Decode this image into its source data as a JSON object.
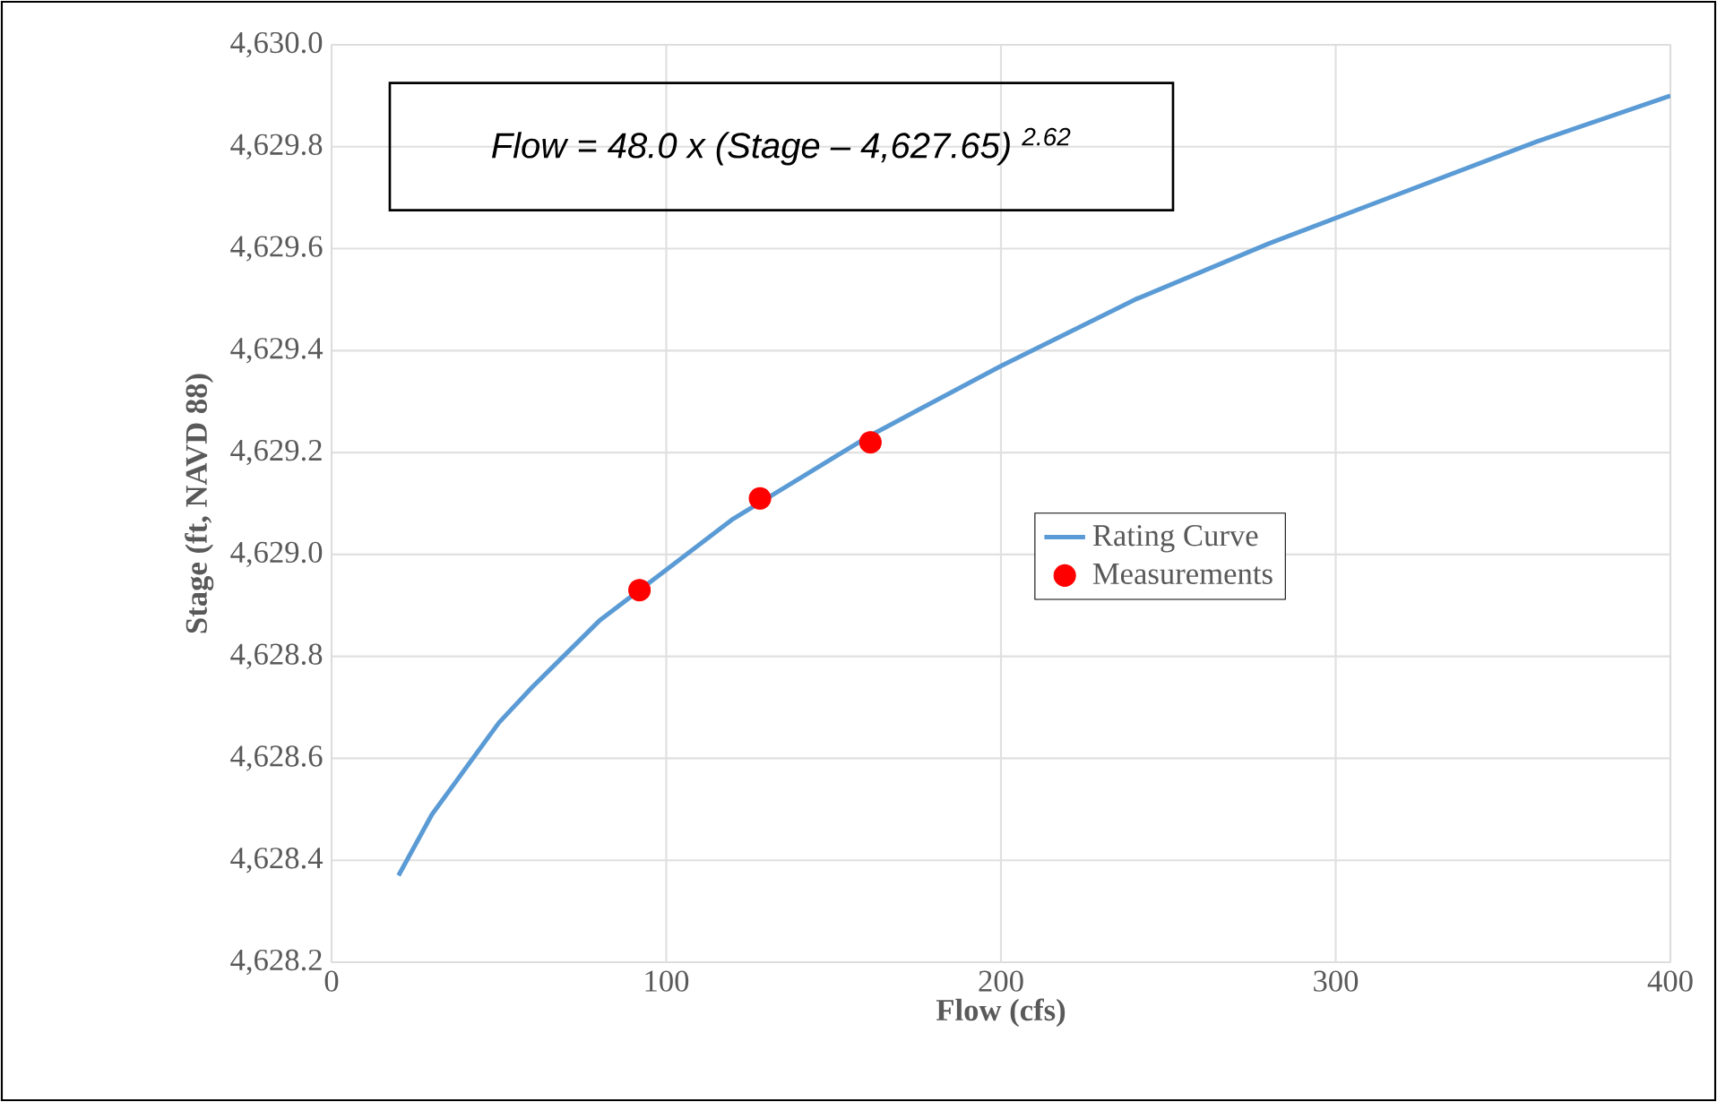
{
  "chart_data": {
    "type": "line",
    "xlabel": "Flow (cfs)",
    "ylabel": "Stage (ft, NAVD 88)",
    "annotations": [
      "Flow = 48.0 x (Stage – 4,627.65) $^{2.62}$"
    ],
    "xlim": [
      0,
      400
    ],
    "xticks": [
      0,
      100,
      200,
      300,
      400
    ],
    "ylim": [
      4628.2,
      4630.0
    ],
    "yticks": [
      {
        "value": 4628.2,
        "label": "4,628.2"
      },
      {
        "value": 4628.4,
        "label": "4,628.4"
      },
      {
        "value": 4628.6,
        "label": "4,628.6"
      },
      {
        "value": 4628.8,
        "label": "4,628.8"
      },
      {
        "value": 4629.0,
        "label": "4,629.0"
      },
      {
        "value": 4629.2,
        "label": "4,629.2"
      },
      {
        "value": 4629.4,
        "label": "4,629.4"
      },
      {
        "value": 4629.6,
        "label": "4,629.6"
      },
      {
        "value": 4629.8,
        "label": "4,629.8"
      },
      {
        "value": 4630.0,
        "label": "4,630.0"
      }
    ],
    "grid": true,
    "legend": "right",
    "series": [
      {
        "name": "Rating Curve",
        "color": "#5b9bd5",
        "marker": "none",
        "x": [
          20,
          30,
          40,
          50,
          60,
          80,
          100,
          120,
          140,
          160,
          200,
          240,
          280,
          320,
          360,
          400
        ],
        "values": [
          4628.37,
          4628.49,
          4628.58,
          4628.67,
          4628.74,
          4628.87,
          4628.97,
          4629.07,
          4629.15,
          4629.23,
          4629.37,
          4629.5,
          4629.61,
          4629.71,
          4629.81,
          4629.9
        ]
      },
      {
        "name": "Measurements",
        "type": "scatter",
        "color": "#ff0000",
        "marker": "circle",
        "x": [
          92,
          128,
          161
        ],
        "values": [
          4628.93,
          4629.11,
          4629.22
        ]
      }
    ]
  }
}
